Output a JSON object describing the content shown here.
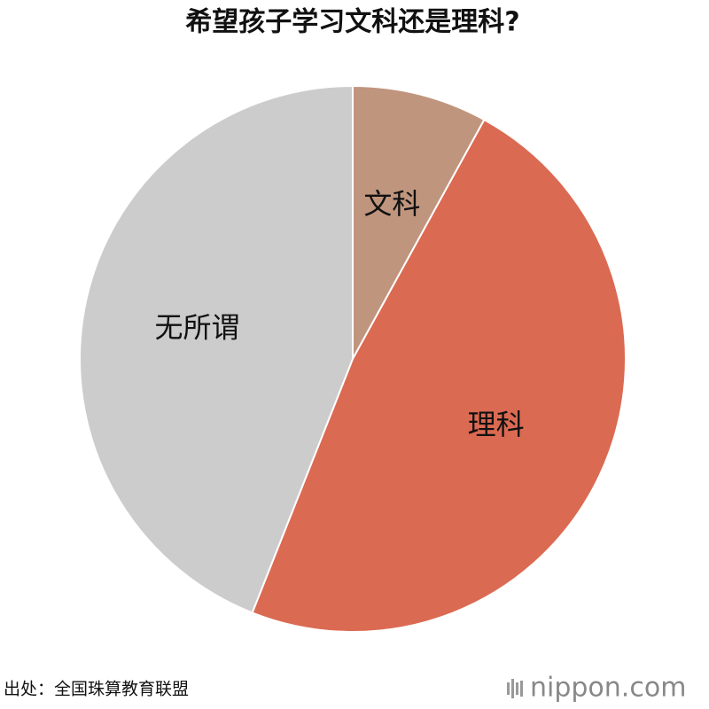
{
  "chart_data": {
    "type": "pie",
    "title": "希望孩子学习文科还是理科?",
    "categories": [
      "文科",
      "理科",
      "无所谓"
    ],
    "values": [
      8,
      48,
      44
    ],
    "colors": [
      "#c0957e",
      "#db6a52",
      "#cccccc"
    ],
    "source": "出处：全国珠算教育联盟",
    "logo": "nippon.com"
  }
}
